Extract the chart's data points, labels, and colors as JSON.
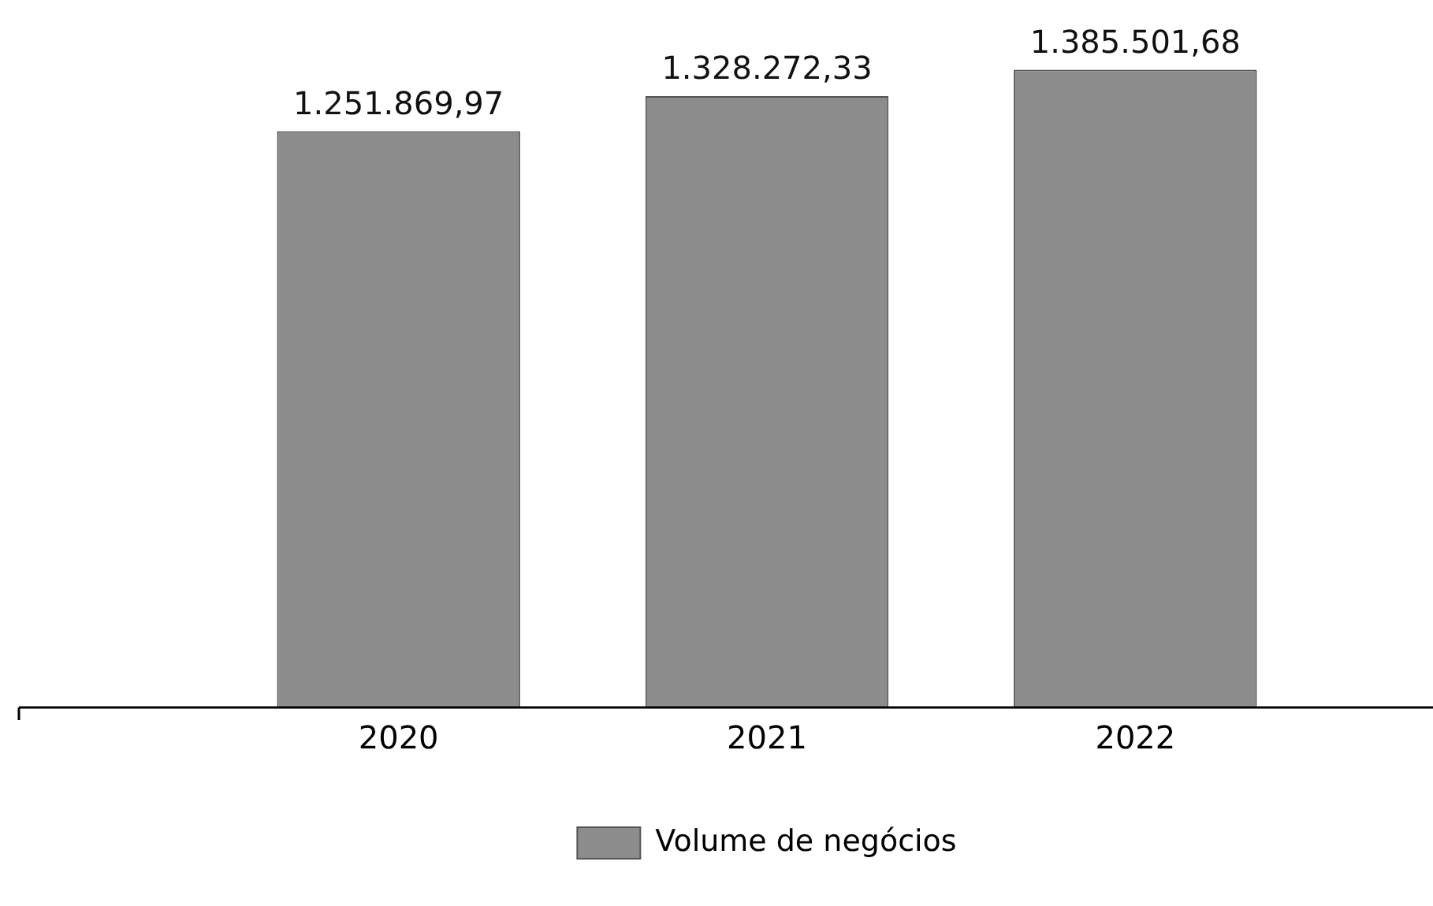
{
  "chart_data": {
    "type": "bar",
    "categories": [
      "2020",
      "2021",
      "2022"
    ],
    "series": [
      {
        "name": "Volume de negócios",
        "color": "#8c8c8c",
        "values": [
          1251869.97,
          1328272.33,
          1385501.68
        ],
        "value_labels": [
          "1.251.869,97",
          "1.328.272,33",
          "1.385.501,68"
        ]
      }
    ],
    "legend": "bottom",
    "grid": false,
    "tick_labels": "x"
  }
}
